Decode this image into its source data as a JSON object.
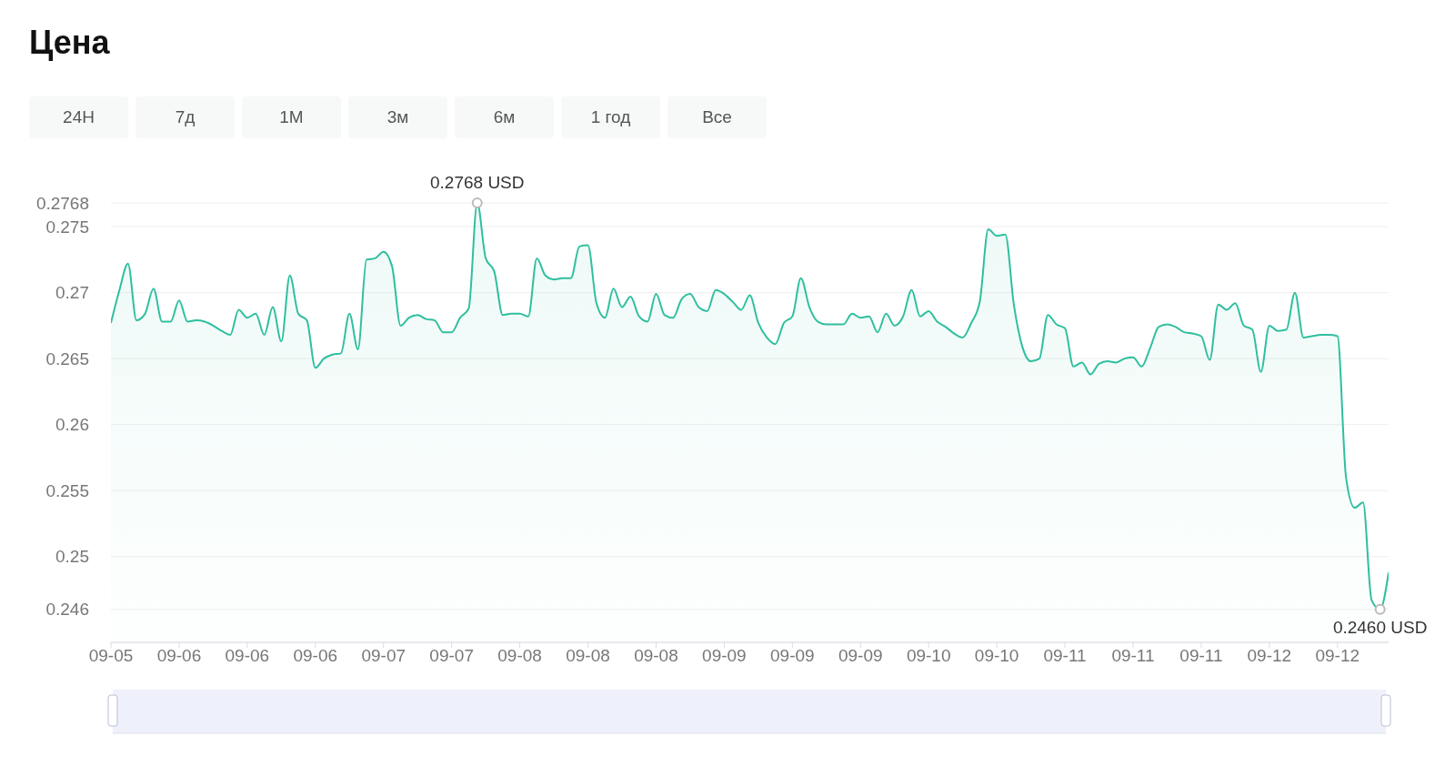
{
  "chart_data": {
    "type": "area",
    "title": "Цена",
    "categories": [
      "09-05",
      null,
      null,
      null,
      null,
      null,
      null,
      null,
      "09-06",
      null,
      null,
      null,
      null,
      null,
      null,
      null,
      "09-06",
      null,
      null,
      null,
      null,
      null,
      null,
      null,
      "09-06",
      null,
      null,
      null,
      null,
      null,
      null,
      null,
      "09-07",
      null,
      null,
      null,
      null,
      null,
      null,
      null,
      "09-07",
      null,
      null,
      null,
      null,
      null,
      null,
      null,
      "09-08",
      null,
      null,
      null,
      null,
      null,
      null,
      null,
      "09-08",
      null,
      null,
      null,
      null,
      null,
      null,
      null,
      "09-08",
      null,
      null,
      null,
      null,
      null,
      null,
      null,
      "09-09",
      null,
      null,
      null,
      null,
      null,
      null,
      null,
      "09-09",
      null,
      null,
      null,
      null,
      null,
      null,
      null,
      "09-09",
      null,
      null,
      null,
      null,
      null,
      null,
      null,
      "09-10",
      null,
      null,
      null,
      null,
      null,
      null,
      null,
      "09-10",
      null,
      null,
      null,
      null,
      null,
      null,
      null,
      "09-11",
      null,
      null,
      null,
      null,
      null,
      null,
      null,
      "09-11",
      null,
      null,
      null,
      null,
      null,
      null,
      null,
      "09-11",
      null,
      null,
      null,
      null,
      null,
      null,
      null,
      "09-12",
      null,
      null,
      null,
      null,
      null,
      null,
      null,
      "09-12",
      null,
      null,
      null,
      null,
      null,
      null
    ],
    "series": [
      {
        "color": "#2fbf9f",
        "values": [
          0.2677,
          0.2702,
          0.2722,
          0.2679,
          0.2684,
          0.2703,
          0.2678,
          0.2678,
          0.2694,
          0.2678,
          0.2679,
          0.2678,
          0.2675,
          0.2671,
          0.2668,
          0.2687,
          0.2681,
          0.2684,
          0.2668,
          0.2689,
          0.2663,
          0.2713,
          0.2684,
          0.2679,
          0.2643,
          0.265,
          0.2653,
          0.2654,
          0.2684,
          0.2657,
          0.2725,
          0.2726,
          0.2731,
          0.272,
          0.2675,
          0.2681,
          0.2683,
          0.268,
          0.2679,
          0.267,
          0.267,
          0.2681,
          0.2688,
          0.2768,
          0.2726,
          0.2716,
          0.2683,
          0.2684,
          0.2684,
          0.2682,
          0.2726,
          0.2713,
          0.271,
          0.2711,
          0.2711,
          0.2735,
          0.2736,
          0.2692,
          0.2681,
          0.2703,
          0.2689,
          0.2697,
          0.2682,
          0.2678,
          0.2699,
          0.2683,
          0.2681,
          0.2695,
          0.2699,
          0.2689,
          0.2686,
          0.2702,
          0.2699,
          0.2693,
          0.2687,
          0.2698,
          0.2677,
          0.2666,
          0.2661,
          0.2677,
          0.2682,
          0.2711,
          0.2689,
          0.2678,
          0.2676,
          0.2676,
          0.2676,
          0.2684,
          0.2681,
          0.2682,
          0.267,
          0.2684,
          0.2675,
          0.2682,
          0.2702,
          0.2682,
          0.2686,
          0.2678,
          0.2674,
          0.2669,
          0.2666,
          0.2677,
          0.2693,
          0.2748,
          0.2743,
          0.2744,
          0.2691,
          0.2659,
          0.2648,
          0.265,
          0.2683,
          0.2676,
          0.2673,
          0.2644,
          0.2647,
          0.2638,
          0.2646,
          0.2648,
          0.2647,
          0.265,
          0.2651,
          0.2644,
          0.2658,
          0.2674,
          0.2676,
          0.2674,
          0.267,
          0.2669,
          0.2667,
          0.2649,
          0.2691,
          0.2687,
          0.2692,
          0.2675,
          0.2672,
          0.264,
          0.2675,
          0.2671,
          0.2672,
          0.27,
          0.2666,
          0.2667,
          0.2668,
          0.2668,
          0.2667,
          0.256,
          0.2537,
          0.2541,
          0.2467,
          0.246,
          0.2488
        ]
      }
    ],
    "ylim": [
      0.2435,
      0.2768
    ],
    "yticks": [
      0.246,
      0.25,
      0.255,
      0.26,
      0.265,
      0.27,
      0.275,
      0.2768
    ],
    "grid": "y",
    "annotations": [
      "24H",
      "7д",
      "1М",
      "3м",
      "6м",
      "1 год",
      "Все",
      {
        "text": "0.2768 USD",
        "y": 0.2768
      },
      {
        "text": "0.2460 USD",
        "y": 0.246
      }
    ]
  }
}
